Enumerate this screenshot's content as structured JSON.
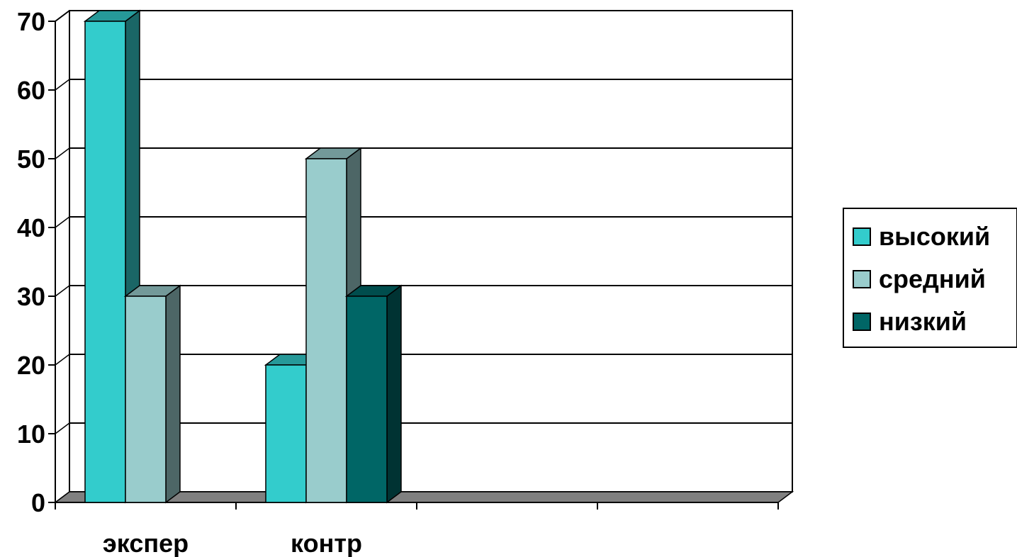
{
  "chart_data": {
    "type": "bar",
    "title": "",
    "xlabel": "",
    "ylabel": "",
    "categories": [
      "экспер",
      "контр",
      "",
      ""
    ],
    "series": [
      {
        "name": "высокий",
        "color": "#33CCCC",
        "values": [
          70,
          20,
          null,
          null
        ]
      },
      {
        "name": "средний",
        "color": "#99CCCC",
        "values": [
          30,
          50,
          null,
          null
        ]
      },
      {
        "name": "низкий",
        "color": "#006666",
        "values": [
          0,
          30,
          null,
          null
        ]
      }
    ],
    "ylim": [
      0,
      70
    ],
    "yticks": [
      "0",
      "10",
      "20",
      "30",
      "40",
      "50",
      "60",
      "70"
    ],
    "grid": true,
    "legend_position": "right",
    "style": "3d-clustered-column"
  }
}
